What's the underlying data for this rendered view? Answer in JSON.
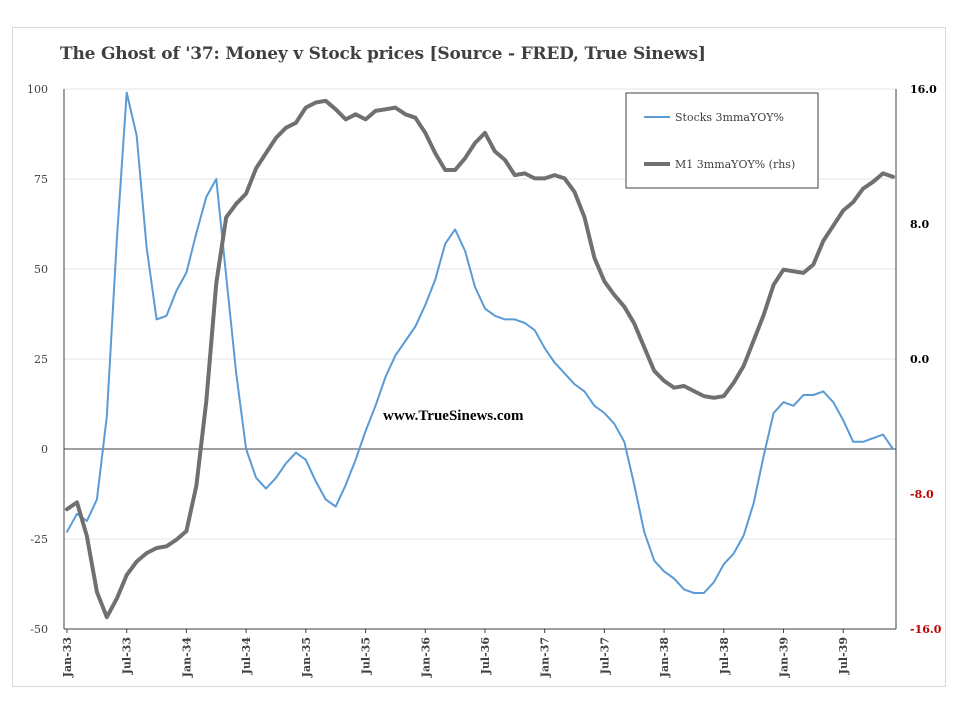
{
  "chart_data": {
    "type": "line",
    "title": "The Ghost of '37: Money v Stock prices [Source -  FRED, True Sinews]",
    "watermark": "www.TrueSinews.com",
    "x_labels": [
      "Jan-33",
      "Jul-33",
      "Jan-34",
      "Jul-34",
      "Jan-35",
      "Jul-35",
      "Jan-36",
      "Jul-36",
      "Jan-37",
      "Jul-37",
      "Jan-38",
      "Jul-38",
      "Jan-39",
      "Jul-39"
    ],
    "y_left": {
      "min": -50,
      "max": 100,
      "ticks": [
        "-50",
        "-25",
        "0",
        "25",
        "50",
        "75",
        "100"
      ]
    },
    "y_right": {
      "min": -16,
      "max": 16,
      "ticks": [
        "-16.0",
        "-8.0",
        "0.0",
        "8.0",
        "16.0"
      ]
    },
    "legend_position": "top-right",
    "series": [
      {
        "name": "Stocks 3mmaYOY%",
        "axis": "left",
        "color": "#5b9bd5",
        "values": [
          -23,
          -18,
          -20,
          -14,
          9,
          58,
          99,
          87,
          56,
          36,
          37,
          44,
          49,
          60,
          70,
          75,
          48,
          21,
          0,
          -8,
          -11,
          -8,
          -4,
          -1,
          -3,
          -9,
          -14,
          -16,
          -10,
          -3,
          5,
          12,
          20,
          26,
          30,
          34,
          40,
          47,
          57,
          61,
          55,
          45,
          39,
          37,
          36,
          36,
          35,
          33,
          28,
          24,
          21,
          18,
          16,
          12,
          10,
          7,
          2,
          -10,
          -23,
          -31,
          -34,
          -36,
          -39,
          -40,
          -40,
          -37,
          -32,
          -29,
          -24,
          -15,
          -2,
          10,
          13,
          12,
          15,
          15,
          16,
          13,
          8,
          2,
          2,
          3,
          4,
          0
        ]
      },
      {
        "name": "M1 3mmaYOY% (rhs)",
        "axis": "right",
        "color": "#707070",
        "values": [
          -8.9,
          -8.5,
          -10.5,
          -13.8,
          -15.3,
          -14.2,
          -12.8,
          -12,
          -11.5,
          -11.2,
          -11.1,
          -10.7,
          -10.2,
          -7.5,
          -2.5,
          4.5,
          8.4,
          9.2,
          9.8,
          11.3,
          12.2,
          13.1,
          13.7,
          14,
          14.9,
          15.2,
          15.3,
          14.8,
          14.2,
          14.5,
          14.2,
          14.7,
          14.8,
          14.9,
          14.5,
          14.3,
          13.4,
          12.2,
          11.2,
          11.2,
          11.9,
          12.8,
          13.4,
          12.3,
          11.8,
          10.9,
          11,
          10.7,
          10.7,
          10.9,
          10.7,
          9.9,
          8.4,
          6,
          4.6,
          3.8,
          3.1,
          2.1,
          0.7,
          -0.7,
          -1.3,
          -1.7,
          -1.6,
          -1.9,
          -2.2,
          -2.3,
          -2.2,
          -1.4,
          -0.4,
          1.1,
          2.6,
          4.4,
          5.3,
          5.2,
          5.1,
          5.6,
          7,
          7.9,
          8.8,
          9.3,
          10.1,
          10.5,
          11,
          10.8
        ]
      }
    ]
  }
}
